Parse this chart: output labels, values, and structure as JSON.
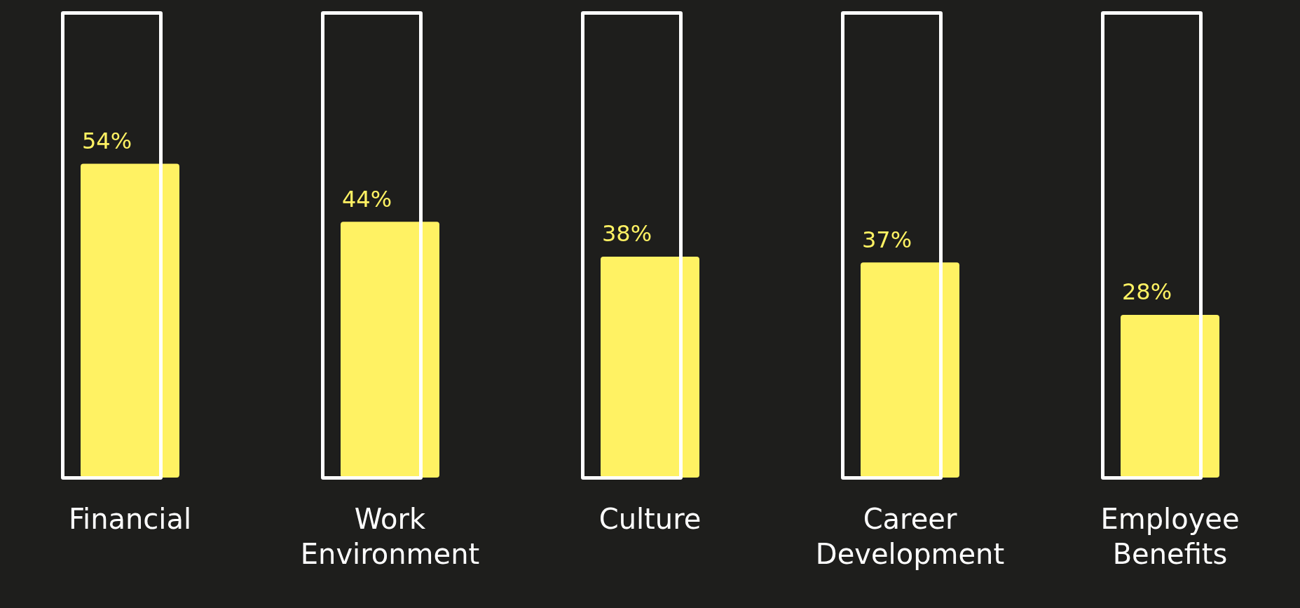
{
  "chart_data": {
    "type": "bar",
    "categories": [
      "Financial",
      "Work Environment",
      "Culture",
      "Career Development",
      "Employee Benefits"
    ],
    "values": [
      54,
      44,
      38,
      37,
      28
    ],
    "value_labels": [
      "54%",
      "44%",
      "38%",
      "37%",
      "28%"
    ],
    "color": "#fff263",
    "tick_labels": "x"
  }
}
